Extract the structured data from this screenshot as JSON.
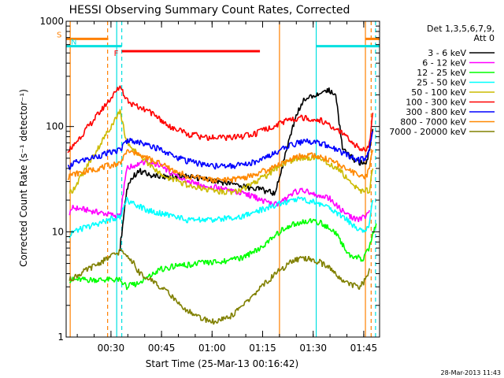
{
  "chart_data": {
    "type": "line",
    "title": "HESSI Observing Summary Count Rates, Corrected",
    "xlabel": "Start Time (25-Mar-13 00:16:42)",
    "ylabel": "Corrected Count Rate (s⁻¹ detector⁻¹)",
    "y_scale": "log",
    "ylim": [
      1,
      1000
    ],
    "xlim_minutes_after_start": [
      0,
      93
    ],
    "y_ticks": [
      {
        "value": 1,
        "label": "1"
      },
      {
        "value": 10,
        "label": "10"
      },
      {
        "value": 100,
        "label": "100"
      },
      {
        "value": 1000,
        "label": "1000"
      }
    ],
    "x_ticks": [
      {
        "minute": 13.3,
        "label": "00:30"
      },
      {
        "minute": 28.3,
        "label": "00:45"
      },
      {
        "minute": 43.3,
        "label": "01:00"
      },
      {
        "minute": 58.3,
        "label": "01:15"
      },
      {
        "minute": 73.3,
        "label": "01:30"
      },
      {
        "minute": 88.3,
        "label": "01:45"
      }
    ],
    "legend_title": [
      "Det 1,3,5,6,7,9,",
      "Att 0"
    ],
    "legend_placement": "right",
    "series": [
      {
        "name": "3 - 6 keV",
        "color": "#000000",
        "points": [
          [
            16,
            7
          ],
          [
            18,
            26
          ],
          [
            20,
            34
          ],
          [
            22,
            38
          ],
          [
            25,
            34
          ],
          [
            30,
            33
          ],
          [
            35,
            34
          ],
          [
            40,
            32
          ],
          [
            45,
            30
          ],
          [
            50,
            28
          ],
          [
            55,
            26
          ],
          [
            58,
            25
          ],
          [
            62,
            23
          ],
          [
            64,
            40
          ],
          [
            66,
            70
          ],
          [
            68,
            120
          ],
          [
            70,
            170
          ],
          [
            72,
            190
          ],
          [
            74,
            200
          ],
          [
            76,
            210
          ],
          [
            78,
            220
          ],
          [
            80,
            205
          ],
          [
            82,
            60
          ],
          [
            85,
            50
          ],
          [
            87,
            45
          ],
          [
            89,
            45
          ],
          [
            90,
            60
          ],
          [
            91,
            95
          ]
        ]
      },
      {
        "name": "6 - 12 keV",
        "color": "#ff00ff",
        "points": [
          [
            1,
            15
          ],
          [
            2,
            17
          ],
          [
            16,
            14
          ],
          [
            18,
            40
          ],
          [
            22,
            45
          ],
          [
            25,
            47
          ],
          [
            28,
            42
          ],
          [
            32,
            35
          ],
          [
            36,
            30
          ],
          [
            40,
            28
          ],
          [
            45,
            26
          ],
          [
            50,
            24
          ],
          [
            55,
            22
          ],
          [
            58,
            20
          ],
          [
            62,
            18
          ],
          [
            65,
            20
          ],
          [
            68,
            24
          ],
          [
            70,
            25
          ],
          [
            73,
            23
          ],
          [
            76,
            22
          ],
          [
            78,
            21
          ],
          [
            80,
            18
          ],
          [
            84,
            14
          ],
          [
            87,
            13
          ],
          [
            89,
            14
          ],
          [
            90,
            16
          ]
        ]
      },
      {
        "name": "12 - 25 keV",
        "color": "#00ff00",
        "points": [
          [
            1,
            3.5
          ],
          [
            16,
            3.5
          ],
          [
            18,
            3
          ],
          [
            22,
            3.3
          ],
          [
            28,
            4.4
          ],
          [
            34,
            4.8
          ],
          [
            40,
            5
          ],
          [
            46,
            5.2
          ],
          [
            52,
            5.6
          ],
          [
            56,
            6.5
          ],
          [
            60,
            8
          ],
          [
            65,
            11
          ],
          [
            70,
            12.5
          ],
          [
            73,
            12.5
          ],
          [
            76,
            12
          ],
          [
            80,
            9.5
          ],
          [
            84,
            6
          ],
          [
            88,
            5.5
          ],
          [
            90,
            7
          ],
          [
            92,
            12
          ]
        ]
      },
      {
        "name": "25 - 50 keV",
        "color": "#00ffff",
        "points": [
          [
            1,
            9
          ],
          [
            2,
            10
          ],
          [
            16,
            14
          ],
          [
            18,
            20
          ],
          [
            21,
            18
          ],
          [
            24,
            16
          ],
          [
            28,
            15
          ],
          [
            32,
            14
          ],
          [
            36,
            13
          ],
          [
            40,
            13
          ],
          [
            44,
            13
          ],
          [
            48,
            13.5
          ],
          [
            52,
            14
          ],
          [
            56,
            15.5
          ],
          [
            60,
            17
          ],
          [
            64,
            19
          ],
          [
            68,
            20
          ],
          [
            71,
            20
          ],
          [
            74,
            19
          ],
          [
            78,
            17
          ],
          [
            82,
            14
          ],
          [
            86,
            11
          ],
          [
            89,
            10
          ],
          [
            90,
            12
          ],
          [
            91,
            20
          ]
        ]
      },
      {
        "name": "50 - 100 keV",
        "color": "#ccbb00",
        "points": [
          [
            1,
            24
          ],
          [
            2,
            25
          ],
          [
            16,
            140
          ],
          [
            18,
            70
          ],
          [
            20,
            60
          ],
          [
            22,
            52
          ],
          [
            24,
            45
          ],
          [
            27,
            38
          ],
          [
            30,
            33
          ],
          [
            34,
            29
          ],
          [
            38,
            27
          ],
          [
            42,
            25
          ],
          [
            46,
            24
          ],
          [
            50,
            24
          ],
          [
            53,
            26
          ],
          [
            56,
            30
          ],
          [
            60,
            35
          ],
          [
            64,
            43
          ],
          [
            67,
            48
          ],
          [
            70,
            50
          ],
          [
            73,
            50
          ],
          [
            76,
            48
          ],
          [
            79,
            43
          ],
          [
            82,
            36
          ],
          [
            85,
            28
          ],
          [
            88,
            24
          ],
          [
            90,
            25
          ],
          [
            91,
            40
          ]
        ]
      },
      {
        "name": "100 - 300 keV",
        "color": "#ff0000",
        "points": [
          [
            0.5,
            60
          ],
          [
            2,
            65
          ],
          [
            16,
            240
          ],
          [
            18,
            175
          ],
          [
            20,
            160
          ],
          [
            22,
            150
          ],
          [
            25,
            135
          ],
          [
            28,
            115
          ],
          [
            32,
            95
          ],
          [
            36,
            85
          ],
          [
            40,
            80
          ],
          [
            44,
            78
          ],
          [
            48,
            78
          ],
          [
            52,
            80
          ],
          [
            56,
            85
          ],
          [
            60,
            95
          ],
          [
            63,
            105
          ],
          [
            66,
            115
          ],
          [
            69,
            120
          ],
          [
            72,
            120
          ],
          [
            75,
            115
          ],
          [
            78,
            105
          ],
          [
            81,
            90
          ],
          [
            84,
            75
          ],
          [
            87,
            62
          ],
          [
            89,
            58
          ],
          [
            90,
            70
          ],
          [
            91,
            135
          ]
        ]
      },
      {
        "name": "300 - 800 keV",
        "color": "#0000ff",
        "points": [
          [
            0.5,
            40
          ],
          [
            2,
            45
          ],
          [
            16,
            60
          ],
          [
            18,
            73
          ],
          [
            21,
            72
          ],
          [
            24,
            68
          ],
          [
            28,
            60
          ],
          [
            32,
            52
          ],
          [
            36,
            47
          ],
          [
            40,
            44
          ],
          [
            44,
            42
          ],
          [
            48,
            42
          ],
          [
            52,
            43
          ],
          [
            56,
            46
          ],
          [
            60,
            52
          ],
          [
            63,
            58
          ],
          [
            66,
            65
          ],
          [
            69,
            70
          ],
          [
            72,
            72
          ],
          [
            75,
            70
          ],
          [
            78,
            65
          ],
          [
            81,
            58
          ],
          [
            84,
            52
          ],
          [
            87,
            48
          ],
          [
            89,
            50
          ],
          [
            90,
            60
          ],
          [
            91,
            90
          ]
        ]
      },
      {
        "name": "800 - 7000 keV",
        "color": "#ff8800",
        "points": [
          [
            0.5,
            33
          ],
          [
            2,
            35
          ],
          [
            16,
            45
          ],
          [
            18,
            58
          ],
          [
            21,
            55
          ],
          [
            24,
            50
          ],
          [
            28,
            44
          ],
          [
            32,
            38
          ],
          [
            36,
            34
          ],
          [
            40,
            32
          ],
          [
            44,
            31
          ],
          [
            48,
            31
          ],
          [
            52,
            32
          ],
          [
            56,
            35
          ],
          [
            60,
            39
          ],
          [
            63,
            44
          ],
          [
            66,
            48
          ],
          [
            69,
            52
          ],
          [
            72,
            53
          ],
          [
            75,
            52
          ],
          [
            78,
            48
          ],
          [
            81,
            43
          ],
          [
            84,
            38
          ],
          [
            87,
            34
          ],
          [
            89,
            33
          ],
          [
            90,
            40
          ],
          [
            91,
            60
          ]
        ]
      },
      {
        "name": "7000 - 20000 keV",
        "color": "#808000",
        "points": [
          [
            1,
            3.5
          ],
          [
            16,
            6.5
          ],
          [
            18,
            6
          ],
          [
            20,
            5
          ],
          [
            22,
            4
          ],
          [
            25,
            3.5
          ],
          [
            28,
            3
          ],
          [
            31,
            2.5
          ],
          [
            34,
            2
          ],
          [
            37,
            1.7
          ],
          [
            40,
            1.5
          ],
          [
            44,
            1.4
          ],
          [
            48,
            1.5
          ],
          [
            51,
            1.8
          ],
          [
            54,
            2.2
          ],
          [
            57,
            2.8
          ],
          [
            60,
            3.5
          ],
          [
            63,
            4.2
          ],
          [
            66,
            5
          ],
          [
            69,
            5.5
          ],
          [
            72,
            5.5
          ],
          [
            75,
            5.2
          ],
          [
            78,
            4.5
          ],
          [
            81,
            3.7
          ],
          [
            84,
            3.2
          ],
          [
            87,
            3
          ],
          [
            89,
            3.5
          ],
          [
            90,
            4.5
          ]
        ]
      }
    ],
    "flag_bars": [
      {
        "label": "S",
        "color": "#ff8000",
        "y_value": 680,
        "segments": [
          [
            0,
            12.5
          ],
          [
            88.8,
            93
          ]
        ]
      },
      {
        "label": "N",
        "color": "#00e0e0",
        "y_value": 580,
        "segments": [
          [
            0,
            16.5
          ],
          [
            74.2,
            93
          ]
        ]
      },
      {
        "label": "F",
        "color": "#ff0000",
        "y_value": 520,
        "segments": [
          [
            16.5,
            57.5
          ]
        ]
      }
    ],
    "vertical_markers": [
      {
        "minute": 1.2,
        "color": "#ff8000",
        "style": "solid"
      },
      {
        "minute": 12.3,
        "color": "#ff8000",
        "style": "dashed"
      },
      {
        "minute": 15.0,
        "color": "#00e0e0",
        "style": "solid"
      },
      {
        "minute": 16.5,
        "color": "#00e0e0",
        "style": "dashed"
      },
      {
        "minute": 63.3,
        "color": "#ff8000",
        "style": "solid"
      },
      {
        "minute": 74.2,
        "color": "#00e0e0",
        "style": "solid"
      },
      {
        "minute": 88.8,
        "color": "#ff8000",
        "style": "solid"
      },
      {
        "minute": 90.5,
        "color": "#ff8000",
        "style": "dashed"
      },
      {
        "minute": 91.8,
        "color": "#00e0e0",
        "style": "dashed"
      }
    ],
    "timestamp": "28-Mar-2013 11:43"
  }
}
